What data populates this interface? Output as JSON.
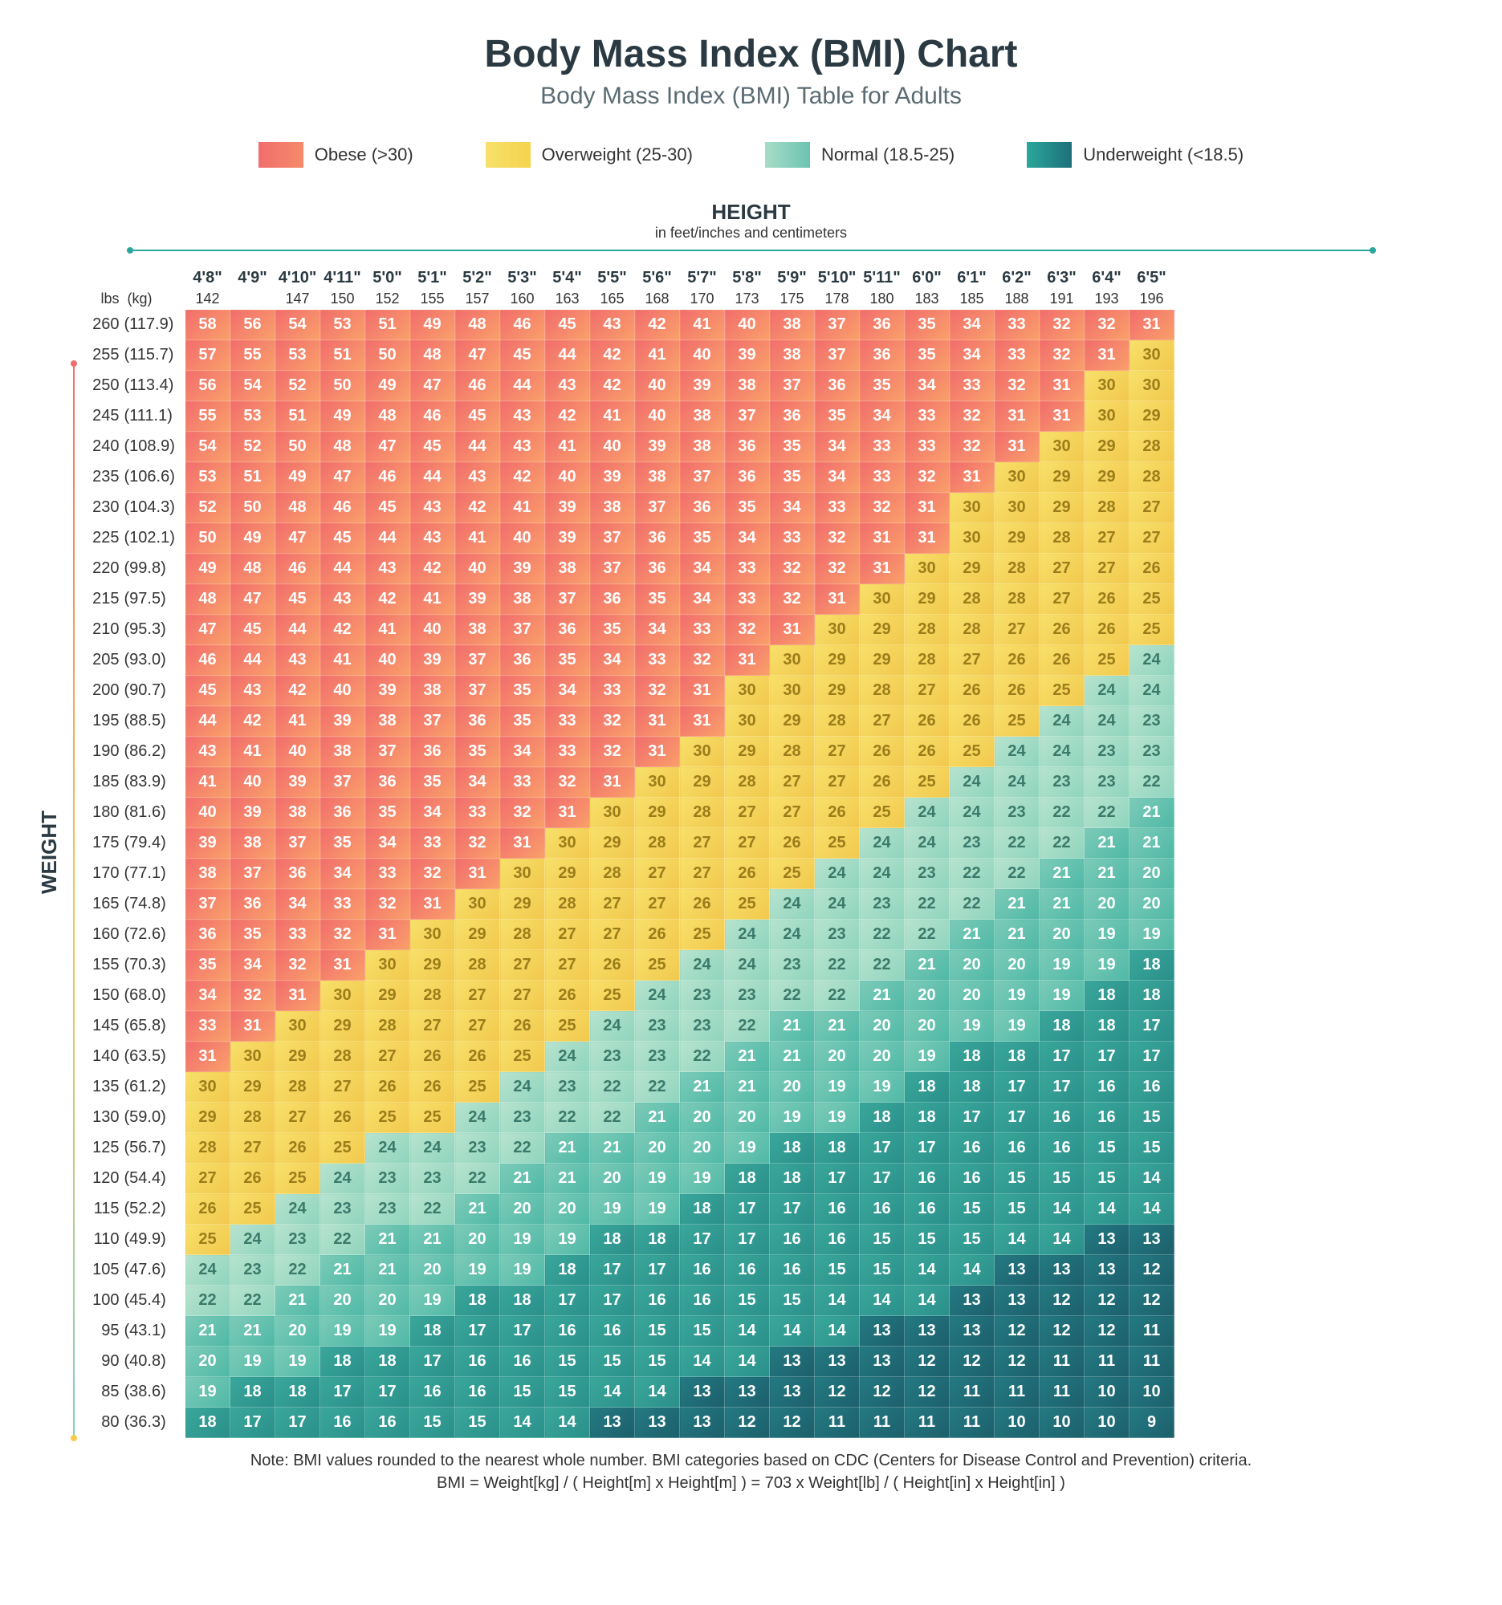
{
  "title": "Body Mass Index (BMI) Chart",
  "subtitle": "Body Mass Index (BMI) Table for Adults",
  "legend": [
    {
      "label": "Obese (>30)",
      "from": "#f26d6d",
      "to": "#f48b6a"
    },
    {
      "label": "Overweight (25-30)",
      "from": "#f7e06a",
      "to": "#f5d34d"
    },
    {
      "label": "Normal (18.5-25)",
      "from": "#a7ddc8",
      "to": "#6cc3b0"
    },
    {
      "label": "Underweight (<18.5)",
      "from": "#2aa79b",
      "to": "#1e6f7a"
    }
  ],
  "height_axis": {
    "title": "HEIGHT",
    "sub": "in feet/inches and centimeters"
  },
  "weight_axis": {
    "title": "WEIGHT"
  },
  "col_header_labels": {
    "lbs": "lbs",
    "kg": "(kg)"
  },
  "heights_ftin": [
    "4'8\"",
    "4'9\"",
    "4'10\"",
    "4'11\"",
    "5'0\"",
    "5'1\"",
    "5'2\"",
    "5'3\"",
    "5'4\"",
    "5'5\"",
    "5'6\"",
    "5'7\"",
    "5'8\"",
    "5'9\"",
    "5'10\"",
    "5'11\"",
    "6'0\"",
    "6'1\"",
    "6'2\"",
    "6'3\"",
    "6'4\"",
    "6'5\""
  ],
  "heights_cm": [
    "142",
    "",
    "147",
    "150",
    "152",
    "155",
    "157",
    "160",
    "163",
    "165",
    "168",
    "170",
    "173",
    "175",
    "178",
    "180",
    "183",
    "185",
    "188",
    "191",
    "193",
    "196"
  ],
  "weights": [
    {
      "lbs": "260",
      "kg": "(117.9)"
    },
    {
      "lbs": "255",
      "kg": "(115.7)"
    },
    {
      "lbs": "250",
      "kg": "(113.4)"
    },
    {
      "lbs": "245",
      "kg": "(111.1)"
    },
    {
      "lbs": "240",
      "kg": "(108.9)"
    },
    {
      "lbs": "235",
      "kg": "(106.6)"
    },
    {
      "lbs": "230",
      "kg": "(104.3)"
    },
    {
      "lbs": "225",
      "kg": "(102.1)"
    },
    {
      "lbs": "220",
      "kg": "(99.8)"
    },
    {
      "lbs": "215",
      "kg": "(97.5)"
    },
    {
      "lbs": "210",
      "kg": "(95.3)"
    },
    {
      "lbs": "205",
      "kg": "(93.0)"
    },
    {
      "lbs": "200",
      "kg": "(90.7)"
    },
    {
      "lbs": "195",
      "kg": "(88.5)"
    },
    {
      "lbs": "190",
      "kg": "(86.2)"
    },
    {
      "lbs": "185",
      "kg": "(83.9)"
    },
    {
      "lbs": "180",
      "kg": "(81.6)"
    },
    {
      "lbs": "175",
      "kg": "(79.4)"
    },
    {
      "lbs": "170",
      "kg": "(77.1)"
    },
    {
      "lbs": "165",
      "kg": "(74.8)"
    },
    {
      "lbs": "160",
      "kg": "(72.6)"
    },
    {
      "lbs": "155",
      "kg": "(70.3)"
    },
    {
      "lbs": "150",
      "kg": "(68.0)"
    },
    {
      "lbs": "145",
      "kg": "(65.8)"
    },
    {
      "lbs": "140",
      "kg": "(63.5)"
    },
    {
      "lbs": "135",
      "kg": "(61.2)"
    },
    {
      "lbs": "130",
      "kg": "(59.0)"
    },
    {
      "lbs": "125",
      "kg": "(56.7)"
    },
    {
      "lbs": "120",
      "kg": "(54.4)"
    },
    {
      "lbs": "115",
      "kg": "(52.2)"
    },
    {
      "lbs": "110",
      "kg": "(49.9)"
    },
    {
      "lbs": "105",
      "kg": "(47.6)"
    },
    {
      "lbs": "100",
      "kg": "(45.4)"
    },
    {
      "lbs": "95",
      "kg": "(43.1)"
    },
    {
      "lbs": "90",
      "kg": "(40.8)"
    },
    {
      "lbs": "85",
      "kg": "(38.6)"
    },
    {
      "lbs": "80",
      "kg": "(36.3)"
    }
  ],
  "bmi": [
    [
      58,
      56,
      54,
      53,
      51,
      49,
      48,
      46,
      45,
      43,
      42,
      41,
      40,
      38,
      37,
      36,
      35,
      34,
      33,
      32,
      32,
      31
    ],
    [
      57,
      55,
      53,
      51,
      50,
      48,
      47,
      45,
      44,
      42,
      41,
      40,
      39,
      38,
      37,
      36,
      35,
      34,
      33,
      32,
      31,
      30
    ],
    [
      56,
      54,
      52,
      50,
      49,
      47,
      46,
      44,
      43,
      42,
      40,
      39,
      38,
      37,
      36,
      35,
      34,
      33,
      32,
      31,
      30,
      30
    ],
    [
      55,
      53,
      51,
      49,
      48,
      46,
      45,
      43,
      42,
      41,
      40,
      38,
      37,
      36,
      35,
      34,
      33,
      32,
      31,
      31,
      30,
      29
    ],
    [
      54,
      52,
      50,
      48,
      47,
      45,
      44,
      43,
      41,
      40,
      39,
      38,
      36,
      35,
      34,
      33,
      33,
      32,
      31,
      30,
      29,
      28
    ],
    [
      53,
      51,
      49,
      47,
      46,
      44,
      43,
      42,
      40,
      39,
      38,
      37,
      36,
      35,
      34,
      33,
      32,
      31,
      30,
      29,
      29,
      28
    ],
    [
      52,
      50,
      48,
      46,
      45,
      43,
      42,
      41,
      39,
      38,
      37,
      36,
      35,
      34,
      33,
      32,
      31,
      30,
      30,
      29,
      28,
      27
    ],
    [
      50,
      49,
      47,
      45,
      44,
      43,
      41,
      40,
      39,
      37,
      36,
      35,
      34,
      33,
      32,
      31,
      31,
      30,
      29,
      28,
      27,
      27
    ],
    [
      49,
      48,
      46,
      44,
      43,
      42,
      40,
      39,
      38,
      37,
      36,
      34,
      33,
      32,
      32,
      31,
      30,
      29,
      28,
      27,
      27,
      26
    ],
    [
      48,
      47,
      45,
      43,
      42,
      41,
      39,
      38,
      37,
      36,
      35,
      34,
      33,
      32,
      31,
      30,
      29,
      28,
      28,
      27,
      26,
      25
    ],
    [
      47,
      45,
      44,
      42,
      41,
      40,
      38,
      37,
      36,
      35,
      34,
      33,
      32,
      31,
      30,
      29,
      28,
      28,
      27,
      26,
      26,
      25
    ],
    [
      46,
      44,
      43,
      41,
      40,
      39,
      37,
      36,
      35,
      34,
      33,
      32,
      31,
      30,
      29,
      29,
      28,
      27,
      26,
      26,
      25,
      24
    ],
    [
      45,
      43,
      42,
      40,
      39,
      38,
      37,
      35,
      34,
      33,
      32,
      31,
      30,
      30,
      29,
      28,
      27,
      26,
      26,
      25,
      24,
      24
    ],
    [
      44,
      42,
      41,
      39,
      38,
      37,
      36,
      35,
      33,
      32,
      31,
      31,
      30,
      29,
      28,
      27,
      26,
      26,
      25,
      24,
      24,
      23
    ],
    [
      43,
      41,
      40,
      38,
      37,
      36,
      35,
      34,
      33,
      32,
      31,
      30,
      29,
      28,
      27,
      26,
      26,
      25,
      24,
      24,
      23,
      23
    ],
    [
      41,
      40,
      39,
      37,
      36,
      35,
      34,
      33,
      32,
      31,
      30,
      29,
      28,
      27,
      27,
      26,
      25,
      24,
      24,
      23,
      23,
      22
    ],
    [
      40,
      39,
      38,
      36,
      35,
      34,
      33,
      32,
      31,
      30,
      29,
      28,
      27,
      27,
      26,
      25,
      24,
      24,
      23,
      22,
      22,
      21
    ],
    [
      39,
      38,
      37,
      35,
      34,
      33,
      32,
      31,
      30,
      29,
      28,
      27,
      27,
      26,
      25,
      24,
      24,
      23,
      22,
      22,
      21,
      21
    ],
    [
      38,
      37,
      36,
      34,
      33,
      32,
      31,
      30,
      29,
      28,
      27,
      27,
      26,
      25,
      24,
      24,
      23,
      22,
      22,
      21,
      21,
      20
    ],
    [
      37,
      36,
      34,
      33,
      32,
      31,
      30,
      29,
      28,
      27,
      27,
      26,
      25,
      24,
      24,
      23,
      22,
      22,
      21,
      21,
      20,
      20
    ],
    [
      36,
      35,
      33,
      32,
      31,
      30,
      29,
      28,
      27,
      27,
      26,
      25,
      24,
      24,
      23,
      22,
      22,
      21,
      21,
      20,
      19,
      19
    ],
    [
      35,
      34,
      32,
      31,
      30,
      29,
      28,
      27,
      27,
      26,
      25,
      24,
      24,
      23,
      22,
      22,
      21,
      20,
      20,
      19,
      19,
      18
    ],
    [
      34,
      32,
      31,
      30,
      29,
      28,
      27,
      27,
      26,
      25,
      24,
      23,
      23,
      22,
      22,
      21,
      20,
      20,
      19,
      19,
      18,
      18
    ],
    [
      33,
      31,
      30,
      29,
      28,
      27,
      27,
      26,
      25,
      24,
      23,
      23,
      22,
      21,
      21,
      20,
      20,
      19,
      19,
      18,
      18,
      17
    ],
    [
      31,
      30,
      29,
      28,
      27,
      26,
      26,
      25,
      24,
      23,
      23,
      22,
      21,
      21,
      20,
      20,
      19,
      18,
      18,
      17,
      17,
      17
    ],
    [
      30,
      29,
      28,
      27,
      26,
      26,
      25,
      24,
      23,
      22,
      22,
      21,
      21,
      20,
      19,
      19,
      18,
      18,
      17,
      17,
      16,
      16
    ],
    [
      29,
      28,
      27,
      26,
      25,
      25,
      24,
      23,
      22,
      22,
      21,
      20,
      20,
      19,
      19,
      18,
      18,
      17,
      17,
      16,
      16,
      15
    ],
    [
      28,
      27,
      26,
      25,
      24,
      24,
      23,
      22,
      21,
      21,
      20,
      20,
      19,
      18,
      18,
      17,
      17,
      16,
      16,
      16,
      15,
      15
    ],
    [
      27,
      26,
      25,
      24,
      23,
      23,
      22,
      21,
      21,
      20,
      19,
      19,
      18,
      18,
      17,
      17,
      16,
      16,
      15,
      15,
      15,
      14
    ],
    [
      26,
      25,
      24,
      23,
      23,
      22,
      21,
      20,
      20,
      19,
      19,
      18,
      17,
      17,
      16,
      16,
      16,
      15,
      15,
      14,
      14,
      14
    ],
    [
      25,
      24,
      23,
      22,
      21,
      21,
      20,
      19,
      19,
      18,
      18,
      17,
      17,
      16,
      16,
      15,
      15,
      15,
      14,
      14,
      13,
      13
    ],
    [
      24,
      23,
      22,
      21,
      21,
      20,
      19,
      19,
      18,
      17,
      17,
      16,
      16,
      16,
      15,
      15,
      14,
      14,
      13,
      13,
      13,
      12
    ],
    [
      22,
      22,
      21,
      20,
      20,
      19,
      18,
      18,
      17,
      17,
      16,
      16,
      15,
      15,
      14,
      14,
      14,
      13,
      13,
      12,
      12,
      12
    ],
    [
      21,
      21,
      20,
      19,
      19,
      18,
      17,
      17,
      16,
      16,
      15,
      15,
      14,
      14,
      14,
      13,
      13,
      13,
      12,
      12,
      12,
      11
    ],
    [
      20,
      19,
      19,
      18,
      18,
      17,
      16,
      16,
      15,
      15,
      15,
      14,
      14,
      13,
      13,
      13,
      12,
      12,
      12,
      11,
      11,
      11
    ],
    [
      19,
      18,
      18,
      17,
      17,
      16,
      16,
      15,
      15,
      14,
      14,
      13,
      13,
      13,
      12,
      12,
      12,
      11,
      11,
      11,
      10,
      10
    ],
    [
      18,
      17,
      17,
      16,
      16,
      15,
      15,
      14,
      14,
      13,
      13,
      13,
      12,
      12,
      11,
      11,
      11,
      11,
      10,
      10,
      10,
      9
    ]
  ],
  "colors": {
    "obese": {
      "from": "#f26d6d",
      "to": "#f9a06a",
      "text": "#ffffff"
    },
    "overweight": {
      "from": "#f7e06a",
      "to": "#f2c84d",
      "text": "#9a7d1a"
    },
    "normal_hi": {
      "from": "#b7e3cf",
      "to": "#8fd4bd",
      "text": "#3a7a6a"
    },
    "normal_lo": {
      "from": "#7ccbb8",
      "to": "#4fb8a6",
      "text": "#ffffff"
    },
    "under_hi": {
      "from": "#3aa79b",
      "to": "#2a8f8a",
      "text": "#ffffff"
    },
    "under_lo": {
      "from": "#247a82",
      "to": "#1c5f6b",
      "text": "#ffffff"
    }
  },
  "footnote_line1": "Note: BMI values rounded to the nearest whole number. BMI categories based on CDC (Centers for Disease Control and Prevention) criteria.",
  "footnote_line2": "BMI = Weight[kg] / ( Height[m] x Height[m] ) = 703 x Weight[lb] / ( Height[in] x Height[in] )"
}
